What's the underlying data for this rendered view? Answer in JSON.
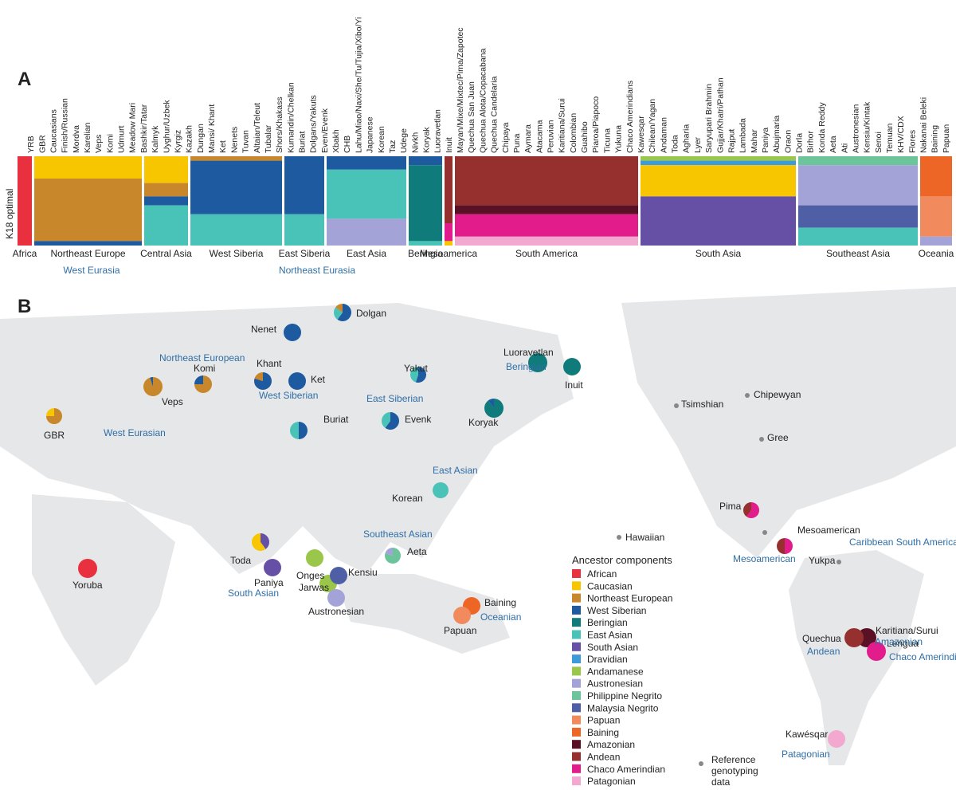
{
  "panel_a": {
    "label": "A",
    "ylabel": "K18 optimal",
    "pop_labels": [
      "YRB",
      "GBR",
      "Caucasians",
      "Finish/Russian",
      "Mordva",
      "Karelian",
      "Veps",
      "Komi",
      "Udmurt",
      "Meadow Mari",
      "Bashkir/Tatar",
      "Kalmyk",
      "Uyghur/Uzbek",
      "Kyrgiz",
      "Kazakh",
      "Dungan",
      "Mansi/ Khant",
      "Ket",
      "Nenets",
      "Tuvan",
      "Altaian/Teleut",
      "Tubalar",
      "Shors/Khakass",
      "Kumandin/Chelkan",
      "Buriat",
      "Dolgans/Yakuts",
      "Even/Evenk",
      "Xbakh",
      "CHB",
      "Lahu/Miao/Naxi/She/Tu/Tujia/Xibo/Yi",
      "Japanese",
      "Korean",
      "Taz",
      "Udege",
      "Nivkh",
      "Koryak",
      "Luoravetlan",
      "Inuit",
      "Mayan/Mixe/Mixtec/Pima/Zapotec",
      "Quechua San Juan",
      "Quechua Alota/Copacabana",
      "Quechua Candelaria",
      "Chipaya",
      "Puna",
      "Aymara",
      "Atacama",
      "Peruvian",
      "Karitiana/Surui",
      "Colombian",
      "Guahibo",
      "Piaroa/Piapoco",
      "Ticuna",
      "Yukuna",
      "Chaco Amerindians",
      "Kawesqar",
      "Chilean/Yagan",
      "Andaman",
      "Toda",
      "Agharia",
      "Lyer",
      "Saryupari Brahmin",
      "Gujjar/Khatri/Pathan",
      "Rajput",
      "Lambada",
      "Mahar",
      "Paniya",
      "Abujmaria",
      "Oraon",
      "Dorla",
      "Birhor",
      "Konda Reddy",
      "Aeta",
      "Ati",
      "Austronesian",
      "Kensiu/Kintak",
      "Senoi",
      "Temuan",
      "KHV/CDX",
      "Flores",
      "Nakanai Beleki",
      "Baining",
      "Papuan"
    ],
    "regions": [
      "Africa",
      "Northeast Europe",
      "Central Asia",
      "West Siberia",
      "East Siberia",
      "East Asia",
      "Beringia",
      "Mesoamerica",
      "South America",
      "South Asia",
      "Southeast Asia",
      "Oceania"
    ],
    "super_regions": [
      "West Eurasia",
      "Northeast Eurasia"
    ]
  },
  "panel_b": {
    "label": "B",
    "pop_labels": [
      "Dolgan",
      "Nenet",
      "Khant",
      "Ket",
      "Komi",
      "Veps",
      "GBR",
      "Yakut",
      "Buriat",
      "Evenk",
      "Luoravetlan",
      "Inuit",
      "Koryak",
      "Korean",
      "Toda",
      "Paniya",
      "Onges",
      "Jarwas",
      "Kensiu",
      "Aeta",
      "Austronesian",
      "Baining",
      "Papuan",
      "Yoruba",
      "Pima",
      "Mesoamerican",
      "Yukpa",
      "Karitiana/Surui",
      "Quechua",
      "Lengua",
      "Kawésqar",
      "Tsimshian",
      "Chipewyan",
      "Gree",
      "Hawaiian"
    ],
    "group_labels": [
      "Northeast  European",
      "West Siberian",
      "East Siberian",
      "Beringian",
      "West Eurasian",
      "East Asian",
      "Southeast Asian",
      "South Asian",
      "Oceanian",
      "Mesoamerican",
      "Caribbean South America",
      "Amazonian",
      "Andean",
      "Chaco Amerindian",
      "Patagonian"
    ],
    "legend_title": "Ancestor components",
    "reference_label": "Reference genotyping data"
  },
  "chart_data": [
    {
      "type": "bar",
      "title": "",
      "ylabel": "K18 optimal",
      "components": [
        {
          "name": "African",
          "color": "#E8303F"
        },
        {
          "name": "Caucasian",
          "color": "#F7C600"
        },
        {
          "name": "Northeast European",
          "color": "#C8872A"
        },
        {
          "name": "West Siberian",
          "color": "#1E5AA0"
        },
        {
          "name": "Beringian",
          "color": "#0F7B7A"
        },
        {
          "name": "East Asian",
          "color": "#49C3B8"
        },
        {
          "name": "South Asian",
          "color": "#6650A6"
        },
        {
          "name": "Dravidian",
          "color": "#3E9BD9"
        },
        {
          "name": "Andamanese",
          "color": "#9AC64A"
        },
        {
          "name": "Austronesian",
          "color": "#A3A3D8"
        },
        {
          "name": "Philippine Negrito",
          "color": "#6CC59A"
        },
        {
          "name": "Malaysia Negrito",
          "color": "#4F5FA6"
        },
        {
          "name": "Papuan",
          "color": "#F18B5E"
        },
        {
          "name": "Baining",
          "color": "#EE6625"
        },
        {
          "name": "Amazonian",
          "color": "#5A1126"
        },
        {
          "name": "Andean",
          "color": "#96302E"
        },
        {
          "name": "Chaco Amerindian",
          "color": "#E21C8B"
        },
        {
          "name": "Patagonian",
          "color": "#F2A8CF"
        }
      ],
      "blocks": [
        {
          "region": "Africa",
          "parts": [
            [
              "African",
              1.0
            ]
          ]
        },
        {
          "region": "Northeast Europe",
          "parts": [
            [
              "Caucasian",
              0.25
            ],
            [
              "Northeast European",
              0.7
            ],
            [
              "West Siberian",
              0.05
            ]
          ]
        },
        {
          "region": "Central Asia",
          "parts": [
            [
              "Caucasian",
              0.3
            ],
            [
              "Northeast European",
              0.15
            ],
            [
              "West Siberian",
              0.1
            ],
            [
              "East Asian",
              0.45
            ]
          ]
        },
        {
          "region": "West Siberia",
          "parts": [
            [
              "Northeast European",
              0.05
            ],
            [
              "West Siberian",
              0.6
            ],
            [
              "East Asian",
              0.35
            ]
          ]
        },
        {
          "region": "East Siberia",
          "parts": [
            [
              "West Siberian",
              0.65
            ],
            [
              "East Asian",
              0.35
            ]
          ]
        },
        {
          "region": "East Asia",
          "parts": [
            [
              "West Siberian",
              0.15
            ],
            [
              "East Asian",
              0.55
            ],
            [
              "Austronesian",
              0.3
            ]
          ]
        },
        {
          "region": "Beringia",
          "parts": [
            [
              "West Siberian",
              0.1
            ],
            [
              "Beringian",
              0.85
            ],
            [
              "East Asian",
              0.05
            ]
          ]
        },
        {
          "region": "Mesoamerica",
          "parts": [
            [
              "Andean",
              0.75
            ],
            [
              "Chaco Amerindian",
              0.2
            ],
            [
              "Caucasian",
              0.05
            ]
          ]
        },
        {
          "region": "South America",
          "parts": [
            [
              "Andean",
              0.55
            ],
            [
              "Amazonian",
              0.1
            ],
            [
              "Chaco Amerindian",
              0.25
            ],
            [
              "Patagonian",
              0.1
            ]
          ]
        },
        {
          "region": "South Asia",
          "parts": [
            [
              "Andamanese",
              0.05
            ],
            [
              "Dravidian",
              0.05
            ],
            [
              "Caucasian",
              0.35
            ],
            [
              "South Asian",
              0.55
            ]
          ]
        },
        {
          "region": "Southeast Asia",
          "parts": [
            [
              "Philippine Negrito",
              0.1
            ],
            [
              "Austronesian",
              0.45
            ],
            [
              "Malaysia Negrito",
              0.25
            ],
            [
              "East Asian",
              0.2
            ]
          ]
        },
        {
          "region": "Oceania",
          "parts": [
            [
              "Baining",
              0.45
            ],
            [
              "Papuan",
              0.45
            ],
            [
              "Austronesian",
              0.1
            ]
          ]
        }
      ]
    },
    {
      "type": "pie",
      "title": "",
      "legend_title": "Ancestor components",
      "legend": [
        "African",
        "Caucasian",
        "Northeast European",
        "West Siberian",
        "Beringian",
        "East Asian",
        "South Asian",
        "Dravidian",
        "Andamanese",
        "Austronesian",
        "Philippine Negrito",
        "Malaysia Negrito",
        "Papuan",
        "Baining",
        "Amazonian",
        "Andean",
        "Chaco Amerindian",
        "Patagonian"
      ],
      "pies": [
        {
          "label": "Yoruba",
          "parts": [
            [
              "African",
              1.0
            ]
          ]
        },
        {
          "label": "GBR",
          "parts": [
            [
              "Northeast European",
              0.75
            ],
            [
              "Caucasian",
              0.25
            ]
          ]
        },
        {
          "label": "Veps",
          "parts": [
            [
              "Northeast European",
              0.95
            ],
            [
              "West Siberian",
              0.05
            ]
          ]
        },
        {
          "label": "Komi",
          "parts": [
            [
              "Northeast European",
              0.75
            ],
            [
              "West Siberian",
              0.25
            ]
          ]
        },
        {
          "label": "Khant",
          "parts": [
            [
              "West Siberian",
              0.8
            ],
            [
              "Northeast European",
              0.2
            ]
          ]
        },
        {
          "label": "Ket",
          "parts": [
            [
              "West Siberian",
              1.0
            ]
          ]
        },
        {
          "label": "Nenet",
          "parts": [
            [
              "West Siberian",
              1.0
            ]
          ]
        },
        {
          "label": "Dolgan",
          "parts": [
            [
              "West Siberian",
              0.6
            ],
            [
              "East Asian",
              0.25
            ],
            [
              "Northeast European",
              0.15
            ]
          ]
        },
        {
          "label": "Yakut",
          "parts": [
            [
              "West Siberian",
              0.55
            ],
            [
              "East Asian",
              0.45
            ]
          ]
        },
        {
          "label": "Buriat",
          "parts": [
            [
              "West Siberian",
              0.5
            ],
            [
              "East Asian",
              0.5
            ]
          ]
        },
        {
          "label": "Evenk",
          "parts": [
            [
              "West Siberian",
              0.6
            ],
            [
              "East Asian",
              0.4
            ]
          ]
        },
        {
          "label": "Luoravetlan",
          "parts": [
            [
              "Beringian",
              1.0
            ]
          ]
        },
        {
          "label": "Inuit",
          "parts": [
            [
              "Beringian",
              1.0
            ]
          ]
        },
        {
          "label": "Koryak",
          "parts": [
            [
              "Beringian",
              0.9
            ],
            [
              "West Siberian",
              0.1
            ]
          ]
        },
        {
          "label": "Korean",
          "parts": [
            [
              "East Asian",
              1.0
            ]
          ]
        },
        {
          "label": "Toda",
          "parts": [
            [
              "South Asian",
              0.4
            ],
            [
              "Caucasian",
              0.6
            ]
          ]
        },
        {
          "label": "Paniya",
          "parts": [
            [
              "South Asian",
              1.0
            ]
          ]
        },
        {
          "label": "Onges",
          "parts": [
            [
              "Andamanese",
              1.0
            ]
          ]
        },
        {
          "label": "Jarwas",
          "parts": [
            [
              "Andamanese",
              1.0
            ]
          ]
        },
        {
          "label": "Kensiu",
          "parts": [
            [
              "Malaysia Negrito",
              1.0
            ]
          ]
        },
        {
          "label": "Aeta",
          "parts": [
            [
              "Philippine Negrito",
              0.8
            ],
            [
              "Austronesian",
              0.2
            ]
          ]
        },
        {
          "label": "Austronesian",
          "parts": [
            [
              "Austronesian",
              1.0
            ]
          ]
        },
        {
          "label": "Baining",
          "parts": [
            [
              "Baining",
              1.0
            ]
          ]
        },
        {
          "label": "Papuan",
          "parts": [
            [
              "Papuan",
              1.0
            ]
          ]
        },
        {
          "label": "Pima",
          "parts": [
            [
              "Chaco Amerindian",
              0.6
            ],
            [
              "Andean",
              0.4
            ]
          ]
        },
        {
          "label": "Mesoamerican",
          "parts": [
            [
              "Chaco Amerindian",
              0.5
            ],
            [
              "Andean",
              0.5
            ]
          ]
        },
        {
          "label": "Karitiana/Surui",
          "parts": [
            [
              "Amazonian",
              1.0
            ]
          ]
        },
        {
          "label": "Quechua",
          "parts": [
            [
              "Andean",
              1.0
            ]
          ]
        },
        {
          "label": "Lengua",
          "parts": [
            [
              "Chaco Amerindian",
              1.0
            ]
          ]
        },
        {
          "label": "Kawésqar",
          "parts": [
            [
              "Patagonian",
              1.0
            ]
          ]
        }
      ]
    }
  ]
}
